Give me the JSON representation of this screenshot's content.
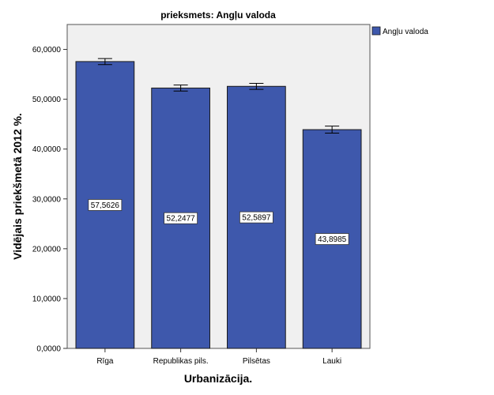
{
  "chart_data": {
    "type": "bar",
    "title": "prieksmets: Angļu valoda",
    "xlabel": "Urbanizācija.",
    "ylabel": "Vidējais priekšmetā 2012 %.",
    "categories": [
      "Rīga",
      "Republikas pils.",
      "Pilsētas",
      "Lauki"
    ],
    "series": [
      {
        "name": "Angļu valoda",
        "values": [
          57.5626,
          52.2477,
          52.5897,
          43.8985
        ],
        "data_labels": [
          "57,5626",
          "52,2477",
          "52,5897",
          "43,8985"
        ],
        "error": [
          0.6,
          0.6,
          0.6,
          0.7
        ]
      }
    ],
    "ylim": [
      0,
      65
    ],
    "yticks": [
      0,
      10,
      20,
      30,
      40,
      50,
      60
    ],
    "ytick_labels": [
      "0,0000",
      "10,0000",
      "20,0000",
      "30,0000",
      "40,0000",
      "50,0000",
      "60,0000"
    ],
    "grid": false,
    "legend_position": "top-right",
    "colors": {
      "bar": "#3e58ac",
      "bar_edge": "#1a1a1a",
      "plot_bg": "#f0f0f0",
      "label_bg": "#ffffff"
    }
  }
}
